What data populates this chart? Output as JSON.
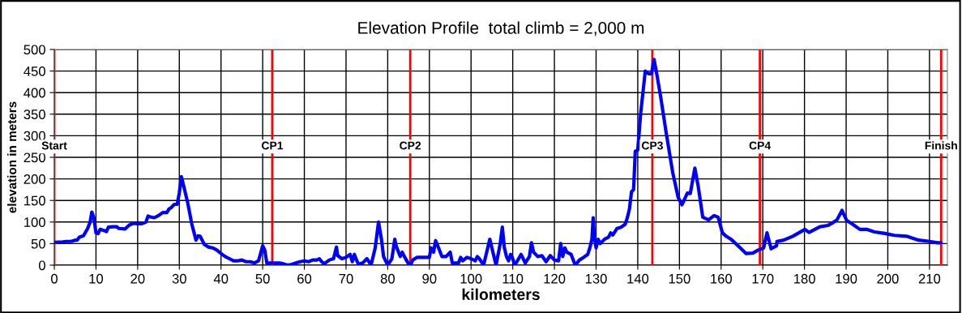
{
  "chart_data": {
    "type": "line",
    "title": "Elevation Profile  total climb = 2,000 m",
    "xlabel": "kilometers",
    "ylabel": "elevation in meters",
    "xlim": [
      0,
      214.3
    ],
    "xticks": [
      0,
      10,
      20,
      30,
      40,
      50,
      60,
      70,
      80,
      90,
      100,
      110,
      120,
      130,
      140,
      150,
      160,
      170,
      180,
      190,
      200,
      210
    ],
    "ylim": [
      0,
      500
    ],
    "yticks": [
      0,
      50,
      100,
      150,
      200,
      250,
      300,
      350,
      400,
      450,
      500
    ],
    "grid": true,
    "legend": false,
    "marker": "none",
    "line_style": "solid",
    "ref_lines": [
      {
        "axis": "x",
        "value": 0,
        "label": "Start",
        "color": "#ff0000"
      },
      {
        "axis": "x",
        "value": 52.3,
        "label": "CP1",
        "color": "#ff0000"
      },
      {
        "axis": "x",
        "value": 85.4,
        "label": "CP2",
        "color": "#ff0000"
      },
      {
        "axis": "x",
        "value": 143.5,
        "label": "CP3",
        "color": "#ff0000"
      },
      {
        "axis": "x",
        "value": 169.3,
        "label": "CP4",
        "color": "#ff0000"
      },
      {
        "axis": "x",
        "value": 212.8,
        "label": "Finish",
        "color": "#ff0000"
      }
    ],
    "series": [
      {
        "color": "#0000ff",
        "x": [
          0,
          2,
          3,
          4,
          5,
          5.5,
          6,
          7,
          8,
          8.6,
          9,
          9.5,
          10,
          10.5,
          11,
          12,
          12.5,
          13,
          14,
          15,
          15.5,
          17,
          18,
          19,
          20,
          21,
          22,
          22.5,
          23,
          24,
          25,
          26,
          27,
          27.5,
          28,
          28.7,
          29,
          29.5,
          30,
          30.5,
          31,
          32,
          33,
          34,
          34.5,
          35,
          36,
          37,
          38,
          39,
          40,
          41,
          42,
          43,
          44,
          45,
          46,
          47,
          48,
          49,
          50,
          50.5,
          51,
          52,
          53,
          54,
          55,
          56,
          57,
          58,
          59,
          60,
          61,
          62,
          63,
          63.6,
          64,
          64.5,
          65,
          66,
          67,
          67.7,
          68,
          69,
          70,
          71,
          71.5,
          72,
          72.6,
          73,
          74,
          75,
          75.5,
          76,
          77,
          77.8,
          78.5,
          79,
          80,
          81,
          81.7,
          82,
          83,
          83.5,
          84,
          85,
          85.5,
          86,
          87,
          88,
          89,
          90,
          90.4,
          91,
          91.5,
          92,
          93,
          94,
          95,
          95.5,
          96,
          97,
          97.5,
          98,
          99,
          100,
          101,
          101.5,
          102,
          103,
          104,
          104.5,
          105,
          106,
          107,
          107.5,
          108,
          108.5,
          109,
          109.5,
          110,
          110.5,
          111,
          112,
          113,
          114,
          114.5,
          115,
          116,
          117,
          118,
          119,
          120,
          121,
          121.5,
          122,
          122.5,
          123,
          124,
          125,
          126,
          127,
          128,
          128.5,
          129,
          129.3,
          129.6,
          130,
          130.5,
          131,
          132,
          133,
          133.5,
          134,
          135,
          136,
          137,
          137.5,
          138,
          138.5,
          139,
          139.4,
          140,
          140.7,
          141.8,
          142.6,
          143.3,
          143.9,
          144.6,
          145.5,
          146.8,
          148.4,
          149.7,
          150.6,
          151.9,
          152.6,
          153.7,
          154.5,
          155.6,
          157,
          158.3,
          159.3,
          160.3,
          161.2,
          162.5,
          164.4,
          166,
          167.6,
          168.9,
          170.2,
          171,
          172,
          173.3,
          173.4,
          175,
          177.2,
          180.1,
          181.1,
          183.7,
          185.6,
          186.9,
          187.8,
          189,
          190.1,
          191.4,
          193.3,
          194.9,
          196.8,
          199,
          201.6,
          204.5,
          207.4,
          209.3,
          211.9,
          212.8
        ],
        "values": [
          53,
          54,
          55,
          55,
          58,
          58,
          65,
          68,
          85,
          100,
          123,
          110,
          75,
          73,
          83,
          80,
          78,
          88,
          89,
          89,
          85,
          84,
          93,
          97,
          96,
          96,
          100,
          114,
          112,
          110,
          115,
          122,
          122,
          130,
          133,
          140,
          141,
          141,
          168,
          205,
          185,
          145,
          95,
          58,
          68,
          67,
          48,
          42,
          40,
          35,
          27,
          20,
          15,
          10,
          10,
          12,
          8,
          8,
          5,
          10,
          45,
          35,
          5,
          5,
          5,
          5,
          3,
          0,
          2,
          5,
          8,
          10,
          8,
          12,
          12,
          15,
          10,
          5,
          5,
          12,
          15,
          42,
          22,
          15,
          18,
          25,
          8,
          25,
          10,
          2,
          5,
          15,
          8,
          0,
          40,
          100,
          60,
          20,
          0,
          15,
          60,
          45,
          20,
          30,
          20,
          3,
          0,
          12,
          18,
          18,
          18,
          18,
          40,
          30,
          57,
          45,
          20,
          20,
          30,
          5,
          5,
          5,
          18,
          10,
          18,
          15,
          10,
          20,
          15,
          0,
          40,
          60,
          40,
          0,
          50,
          88,
          40,
          20,
          10,
          25,
          15,
          0,
          8,
          25,
          5,
          20,
          52,
          30,
          20,
          22,
          8,
          22,
          12,
          10,
          50,
          20,
          40,
          30,
          25,
          0,
          12,
          18,
          25,
          40,
          60,
          110,
          65,
          40,
          60,
          50,
          60,
          65,
          75,
          70,
          85,
          88,
          95,
          110,
          130,
          170,
          175,
          264,
          267,
          352,
          450,
          444,
          444,
          477,
          441,
          390,
          308,
          214,
          157,
          140,
          167,
          166,
          225,
          183,
          111,
          105,
          115,
          111,
          75,
          67,
          59,
          42,
          27,
          28,
          35,
          40,
          75,
          38,
          45,
          55,
          58,
          67,
          83,
          76,
          89,
          92,
          99,
          105,
          127,
          104,
          96,
          83,
          83,
          77,
          74,
          69,
          67,
          58,
          56,
          52,
          52
        ]
      }
    ]
  }
}
